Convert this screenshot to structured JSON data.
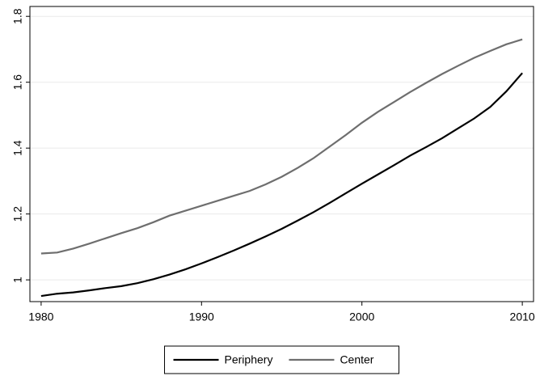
{
  "chart_data": {
    "type": "line",
    "x": [
      1980,
      1981,
      1982,
      1983,
      1984,
      1985,
      1986,
      1987,
      1988,
      1989,
      1990,
      1991,
      1992,
      1993,
      1994,
      1995,
      1996,
      1997,
      1998,
      1999,
      2000,
      2001,
      2002,
      2003,
      2004,
      2005,
      2006,
      2007,
      2008,
      2009,
      2010
    ],
    "series": [
      {
        "name": "Periphery",
        "color": "#000000",
        "values": [
          0.951,
          0.958,
          0.962,
          0.968,
          0.975,
          0.981,
          0.99,
          1.002,
          1.016,
          1.032,
          1.05,
          1.069,
          1.089,
          1.11,
          1.132,
          1.155,
          1.18,
          1.206,
          1.234,
          1.263,
          1.292,
          1.32,
          1.348,
          1.377,
          1.403,
          1.43,
          1.46,
          1.49,
          1.525,
          1.572,
          1.628
        ]
      },
      {
        "name": "Center",
        "color": "#6e6e6e",
        "values": [
          1.08,
          1.083,
          1.095,
          1.11,
          1.126,
          1.142,
          1.157,
          1.175,
          1.195,
          1.21,
          1.225,
          1.24,
          1.255,
          1.27,
          1.29,
          1.313,
          1.34,
          1.37,
          1.405,
          1.44,
          1.477,
          1.51,
          1.54,
          1.57,
          1.598,
          1.625,
          1.65,
          1.674,
          1.695,
          1.715,
          1.73
        ]
      }
    ],
    "xlim": [
      1979.3,
      2010.7
    ],
    "xticks": [
      1980,
      1990,
      2000,
      2010
    ],
    "ylim": [
      0.934,
      1.83
    ],
    "yticks": [
      1,
      1.2,
      1.4,
      1.6,
      1.8
    ],
    "grid": true,
    "legend": "bottom"
  }
}
